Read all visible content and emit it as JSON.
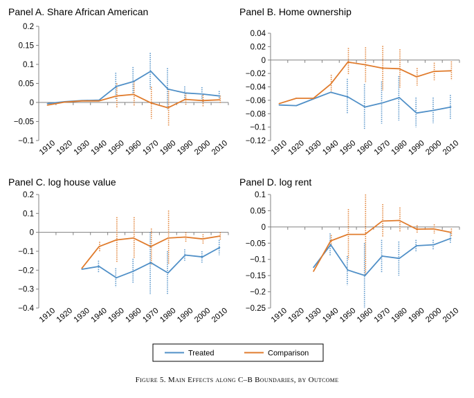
{
  "caption": "Figure 5. Main Effects along C–B Boundaries, by Outcome",
  "legend": {
    "placement": "bottom-center",
    "entries": [
      "Treated",
      "Comparison"
    ]
  },
  "colors": {
    "treated": "#4f8fc7",
    "comparison": "#e07b2c",
    "axis": "#808080"
  },
  "chart_data": [
    {
      "type": "line",
      "title": "Panel A. Share African American",
      "x": [
        "1910",
        "1920",
        "1930",
        "1940",
        "1950",
        "1960",
        "1970",
        "1980",
        "1990",
        "2000",
        "2010"
      ],
      "ylim": [
        -0.1,
        0.2
      ],
      "yticks": [
        "0.2",
        "0.15",
        "0.1",
        "0.05",
        "0",
        "−0.05",
        "−0.1"
      ],
      "yticks_values": [
        0.2,
        0.15,
        0.1,
        0.05,
        0,
        -0.05,
        -0.1
      ],
      "series": [
        {
          "name": "Treated",
          "values": [
            -0.003,
            0.002,
            0.005,
            0.006,
            0.042,
            0.055,
            0.082,
            0.035,
            0.025,
            0.022,
            0.017
          ],
          "ci": [
            null,
            null,
            null,
            null,
            [
              0.008,
              0.078
            ],
            [
              0.018,
              0.093
            ],
            [
              0.035,
              0.13
            ],
            [
              -0.02,
              0.09
            ],
            [
              0.006,
              0.042
            ],
            [
              0.004,
              0.04
            ],
            [
              0.004,
              0.03
            ]
          ]
        },
        {
          "name": "Comparison",
          "values": [
            -0.007,
            0.001,
            0.004,
            0.004,
            0.017,
            0.021,
            -0.001,
            -0.014,
            0.008,
            0.005,
            0.007
          ],
          "ci": [
            null,
            null,
            null,
            null,
            [
              -0.015,
              0.05
            ],
            [
              -0.01,
              0.055
            ],
            [
              -0.043,
              0.041
            ],
            [
              -0.063,
              0.035
            ],
            [
              -0.008,
              0.024
            ],
            [
              -0.01,
              0.02
            ],
            [
              -0.004,
              0.018
            ]
          ]
        }
      ]
    },
    {
      "type": "line",
      "title": "Panel B. Home ownership",
      "x": [
        "1910",
        "1920",
        "1930",
        "1940",
        "1950",
        "1960",
        "1970",
        "1980",
        "1990",
        "2000",
        "2010"
      ],
      "ylim": [
        -0.12,
        0.04
      ],
      "yticks": [
        "0.04",
        "0.02",
        "0",
        "−0.02",
        "−0.04",
        "−0.06",
        "−0.08",
        "−0.1",
        "−0.12"
      ],
      "yticks_values": [
        0.04,
        0.02,
        0,
        -0.02,
        -0.04,
        -0.06,
        -0.08,
        -0.1,
        -0.12
      ],
      "series": [
        {
          "name": "Treated",
          "values": [
            -0.067,
            -0.068,
            -0.058,
            -0.048,
            -0.055,
            -0.07,
            -0.064,
            -0.056,
            -0.079,
            -0.075,
            -0.07
          ],
          "ci": [
            null,
            null,
            null,
            null,
            [
              -0.08,
              -0.028
            ],
            [
              -0.104,
              -0.036
            ],
            [
              -0.095,
              -0.032
            ],
            [
              -0.09,
              -0.024
            ],
            [
              -0.1,
              -0.056
            ],
            [
              -0.094,
              -0.056
            ],
            [
              -0.088,
              -0.052
            ]
          ]
        },
        {
          "name": "Comparison",
          "values": [
            -0.065,
            -0.057,
            -0.057,
            -0.036,
            -0.003,
            -0.007,
            -0.012,
            -0.013,
            -0.025,
            -0.017,
            -0.016
          ],
          "ci": [
            null,
            null,
            null,
            [
              -0.05,
              -0.022
            ],
            [
              -0.022,
              0.018
            ],
            [
              -0.034,
              0.019
            ],
            [
              -0.045,
              0.021
            ],
            [
              -0.041,
              0.016
            ],
            [
              -0.038,
              -0.012
            ],
            [
              -0.03,
              -0.004
            ],
            [
              -0.03,
              -0.002
            ]
          ]
        }
      ]
    },
    {
      "type": "line",
      "title": "Panel C. log house value",
      "x": [
        "1910",
        "1920",
        "1930",
        "1940",
        "1950",
        "1960",
        "1970",
        "1980",
        "1990",
        "2000",
        "2010"
      ],
      "ylim": [
        -0.4,
        0.2
      ],
      "yticks": [
        "0.2",
        "0.1",
        "0",
        "−0.1",
        "−0.2",
        "−0.3",
        "−0.4"
      ],
      "yticks_values": [
        0.2,
        0.1,
        0,
        -0.1,
        -0.2,
        -0.3,
        -0.4
      ],
      "series": [
        {
          "name": "Treated",
          "values": [
            null,
            null,
            -0.195,
            -0.18,
            -0.24,
            -0.205,
            -0.16,
            -0.215,
            -0.12,
            -0.13,
            -0.08
          ],
          "ci": [
            null,
            null,
            null,
            [
              -0.21,
              -0.15
            ],
            [
              -0.29,
              -0.19
            ],
            [
              -0.27,
              -0.14
            ],
            [
              -0.33,
              0.0
            ],
            [
              -0.33,
              -0.1
            ],
            [
              -0.15,
              -0.09
            ],
            [
              -0.16,
              -0.1
            ],
            [
              -0.12,
              -0.04
            ]
          ]
        },
        {
          "name": "Comparison",
          "values": [
            null,
            null,
            -0.19,
            -0.075,
            -0.04,
            -0.03,
            -0.075,
            -0.03,
            -0.025,
            -0.035,
            -0.02
          ],
          "ci": [
            null,
            null,
            null,
            [
              -0.1,
              -0.05
            ],
            [
              -0.16,
              0.08
            ],
            [
              -0.14,
              0.08
            ],
            [
              -0.17,
              0.02
            ],
            [
              -0.17,
              0.115
            ],
            [
              -0.05,
              0.0
            ],
            [
              -0.06,
              -0.01
            ],
            [
              -0.04,
              0.0
            ]
          ]
        }
      ]
    },
    {
      "type": "line",
      "title": "Panel D. log rent",
      "x": [
        "1910",
        "1920",
        "1930",
        "1940",
        "1950",
        "1960",
        "1970",
        "1980",
        "1990",
        "2000",
        "2010"
      ],
      "ylim": [
        -0.25,
        0.1
      ],
      "yticks": [
        "0.1",
        "0.05",
        "0",
        "−0.05",
        "−0.1",
        "−0.15",
        "−0.2",
        "−0.25"
      ],
      "yticks_values": [
        0.1,
        0.05,
        0,
        -0.05,
        -0.1,
        -0.15,
        -0.2,
        -0.25
      ],
      "series": [
        {
          "name": "Treated",
          "values": [
            null,
            null,
            -0.125,
            -0.055,
            -0.133,
            -0.15,
            -0.09,
            -0.097,
            -0.058,
            -0.055,
            -0.035
          ],
          "ci": [
            null,
            null,
            null,
            [
              -0.09,
              -0.02
            ],
            [
              -0.18,
              -0.09
            ],
            [
              -0.25,
              -0.05
            ],
            [
              -0.14,
              -0.04
            ],
            [
              -0.15,
              -0.045
            ],
            [
              -0.075,
              -0.04
            ],
            [
              -0.07,
              -0.04
            ],
            [
              -0.05,
              -0.02
            ]
          ]
        },
        {
          "name": "Comparison",
          "values": [
            null,
            null,
            -0.137,
            -0.043,
            -0.023,
            -0.023,
            0.018,
            0.02,
            -0.007,
            -0.006,
            -0.017
          ],
          "ci": [
            null,
            null,
            null,
            [
              -0.06,
              -0.025
            ],
            [
              -0.1,
              0.055
            ],
            [
              -0.15,
              0.1
            ],
            [
              -0.03,
              0.07
            ],
            [
              -0.015,
              0.06
            ],
            [
              -0.02,
              0.005
            ],
            [
              -0.02,
              0.008
            ],
            [
              -0.03,
              -0.005
            ]
          ]
        }
      ]
    }
  ]
}
